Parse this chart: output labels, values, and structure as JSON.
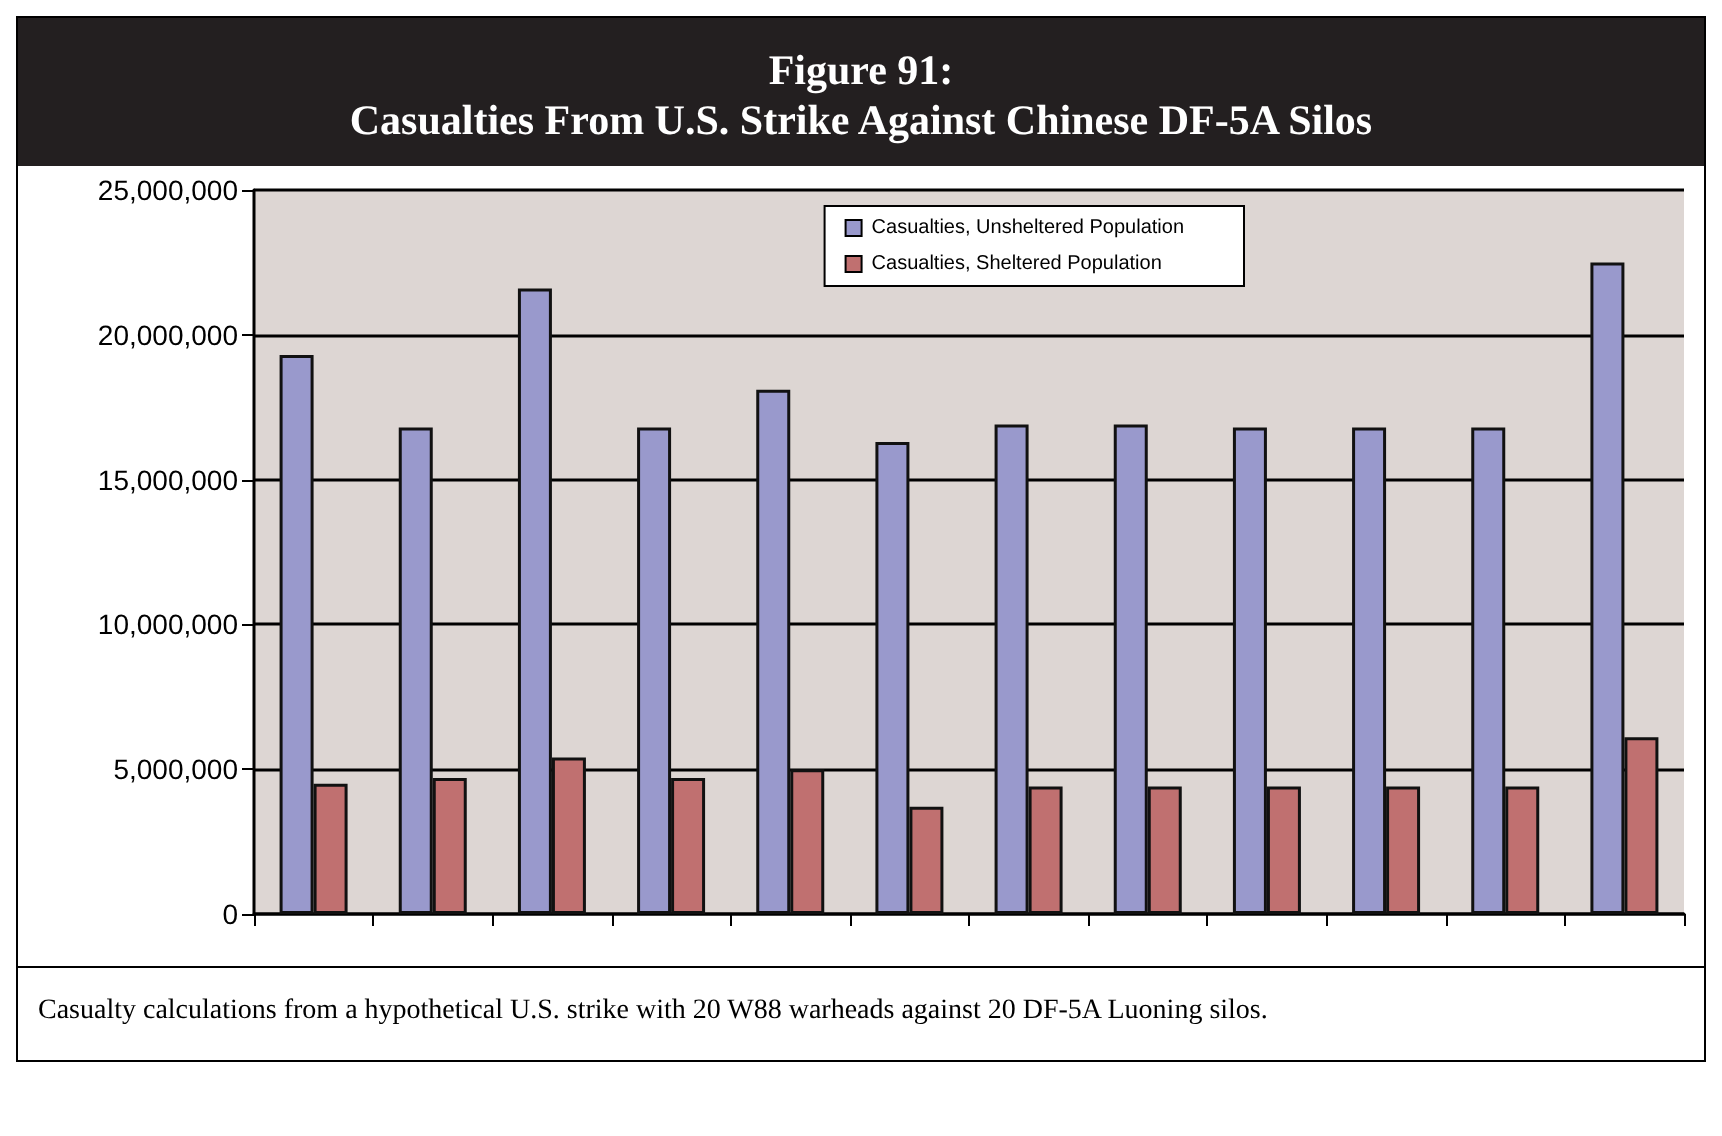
{
  "chart_data": {
    "type": "bar",
    "title": "Figure 91:\nCasualties From U.S. Strike Against Chinese DF-5A Silos",
    "annotations": [
      "Casualty calculations from a hypothetical U.S. strike with 20 W88 warheads against 20 DF-5A Luoning silos."
    ],
    "categories": [
      null,
      null,
      null,
      null,
      null,
      null,
      null,
      null,
      null,
      null,
      null,
      null
    ],
    "series": [
      {
        "name": "Casualties, Unsheltered Population",
        "color": "#9999cc",
        "values": [
          19300000,
          16800000,
          21600000,
          16800000,
          18100000,
          16300000,
          16900000,
          16900000,
          16800000,
          16800000,
          16800000,
          22500000
        ]
      },
      {
        "name": "Casualties, Sheltered Population",
        "color": "#c07070",
        "values": [
          4500000,
          4700000,
          5400000,
          4700000,
          5000000,
          3700000,
          4400000,
          4400000,
          4400000,
          4400000,
          4400000,
          6100000
        ]
      }
    ],
    "ylim": [
      0,
      25000000
    ],
    "yticks": [
      {
        "value": 0,
        "label": "0"
      },
      {
        "value": 5000000,
        "label": "5,000,000"
      },
      {
        "value": 10000000,
        "label": "10,000,000"
      },
      {
        "value": 15000000,
        "label": "15,000,000"
      },
      {
        "value": 20000000,
        "label": "20,000,000"
      },
      {
        "value": 25000000,
        "label": "25,000,000"
      }
    ],
    "grid": "y",
    "legend": "top right"
  }
}
